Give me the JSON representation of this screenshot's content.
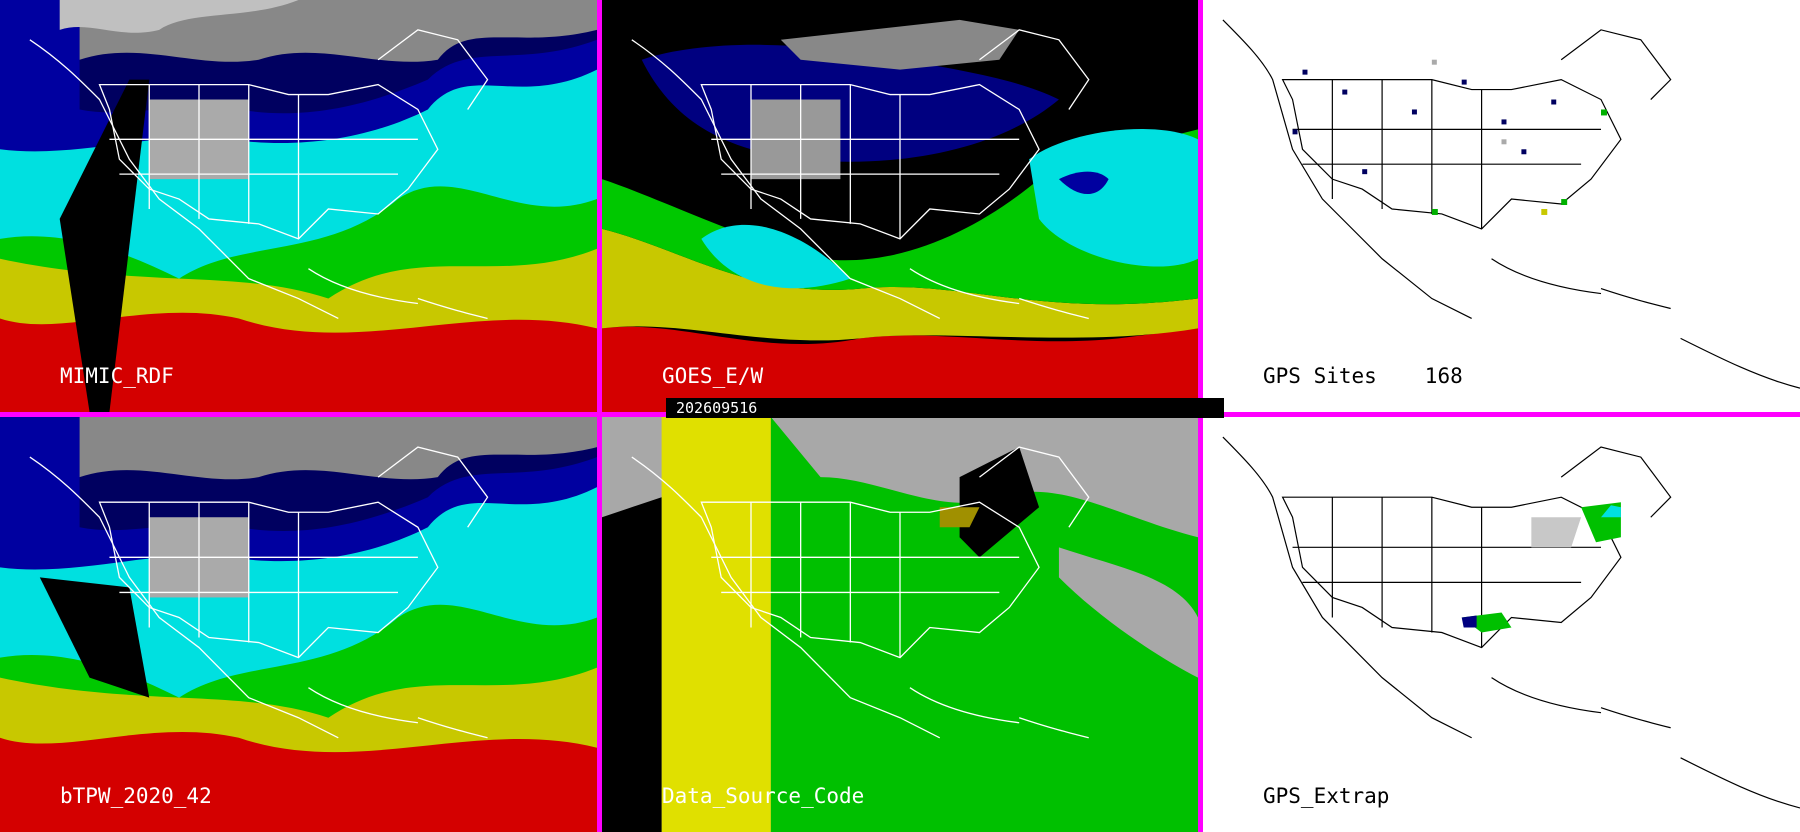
{
  "timestamp": "202609516",
  "panels": [
    {
      "id": "p1",
      "label": "MIMIC_RDF",
      "style": "tpw"
    },
    {
      "id": "p2",
      "label": "GOES_E/W",
      "style": "goes"
    },
    {
      "id": "p3",
      "label": "GPS Sites",
      "count": "168",
      "style": "gps"
    },
    {
      "id": "p4",
      "label": "bTPW_2020_42",
      "style": "tpw"
    },
    {
      "id": "p5",
      "label": "Data_Source_Code",
      "style": "dsc"
    },
    {
      "id": "p6",
      "label": "GPS_Extrap",
      "style": "gps2"
    }
  ],
  "colors": {
    "separator": "#ff00ff",
    "tpw_red": "#d40000",
    "tpw_yellow": "#c8c800",
    "tpw_green": "#00c800",
    "tpw_cyan": "#00e0e0",
    "tpw_blue": "#0000a0",
    "tpw_navy": "#000060",
    "dsc_gray": "#a8a8a8",
    "dsc_yellow": "#e0e000",
    "dsc_green": "#00c000",
    "dsc_olive": "#a09000",
    "outline_dark": "#ffffff",
    "outline_light": "#000000"
  }
}
